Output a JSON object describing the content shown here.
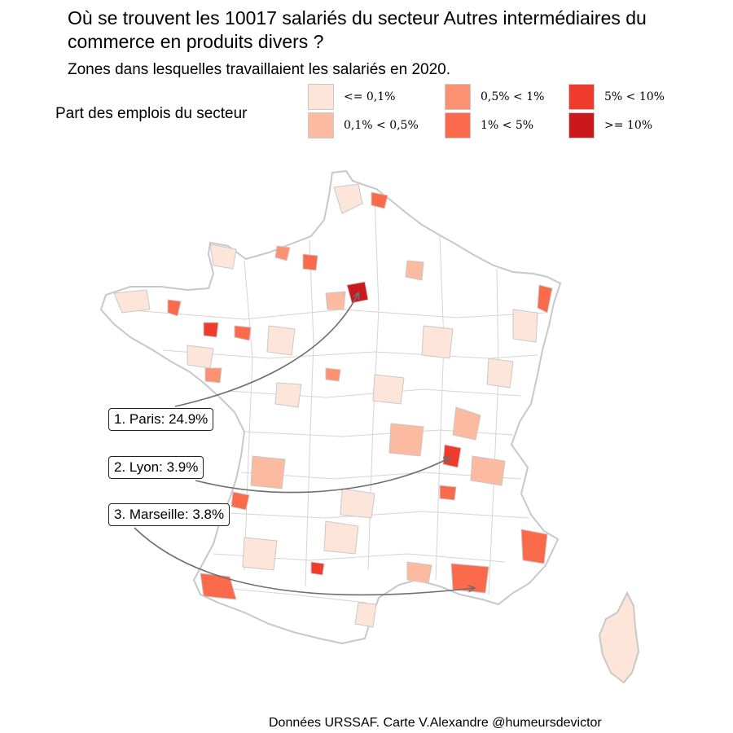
{
  "title": "Où se trouvent les 10017 salariés du secteur Autres intermédiaires du commerce en produits divers ?",
  "subtitle": "Zones dans lesquelles travaillaient les salariés en 2020.",
  "legend": {
    "title": "Part des emplois du secteur",
    "items": [
      {
        "label": "<= 0,1%",
        "color": "#fee5d9"
      },
      {
        "label": "0,1% < 0,5%",
        "color": "#fcbba1"
      },
      {
        "label": "0,5% < 1%",
        "color": "#fc9272"
      },
      {
        "label": "1% < 5%",
        "color": "#fb6a4a"
      },
      {
        "label": "5% < 10%",
        "color": "#ef3b2c"
      },
      {
        "label": ">= 10%",
        "color": "#cb181d"
      }
    ]
  },
  "callouts": [
    {
      "label": "1. Paris: 24.9%",
      "city": "Paris",
      "share_pct": 24.9
    },
    {
      "label": "2. Lyon: 3.9%",
      "city": "Lyon",
      "share_pct": 3.9
    },
    {
      "label": "3. Marseille: 3.8%",
      "city": "Marseille",
      "share_pct": 3.8
    }
  ],
  "caption": "Données URSSAF. Carte V.Alexandre @humeursdevictor",
  "colors": {
    "border": "#c8c8c8",
    "arrow": "#6e6e6e"
  }
}
